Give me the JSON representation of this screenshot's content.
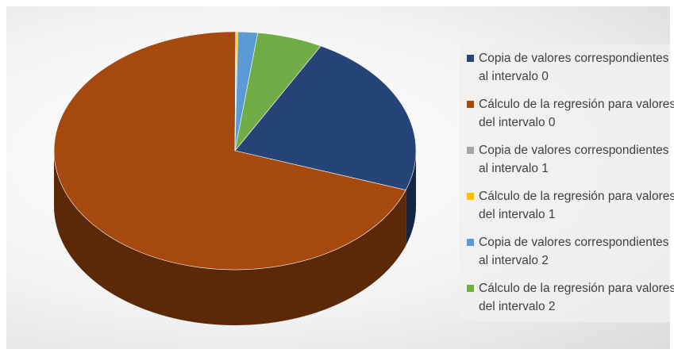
{
  "chart_data": {
    "type": "pie",
    "categories": [
      "Copia de valores correspondientes al intervalo 0",
      "Cálculo de la regresión para valores del intervalo 0",
      "Copia de valores correspondientes al intervalo 1",
      "Cálculo de la regresión para valores del intervalo 1",
      "Copia de valores correspondientes al intervalo 2",
      "Cálculo de la regresión para valores del intervalo 2"
    ],
    "values": [
      22.5,
      69.7,
      0.05,
      0.15,
      1.75,
      5.85
    ],
    "colors": [
      "#264478",
      "#a5490e",
      "#a5a5a5",
      "#ffc000",
      "#5b9bd5",
      "#70ad47"
    ],
    "legend": "right"
  }
}
